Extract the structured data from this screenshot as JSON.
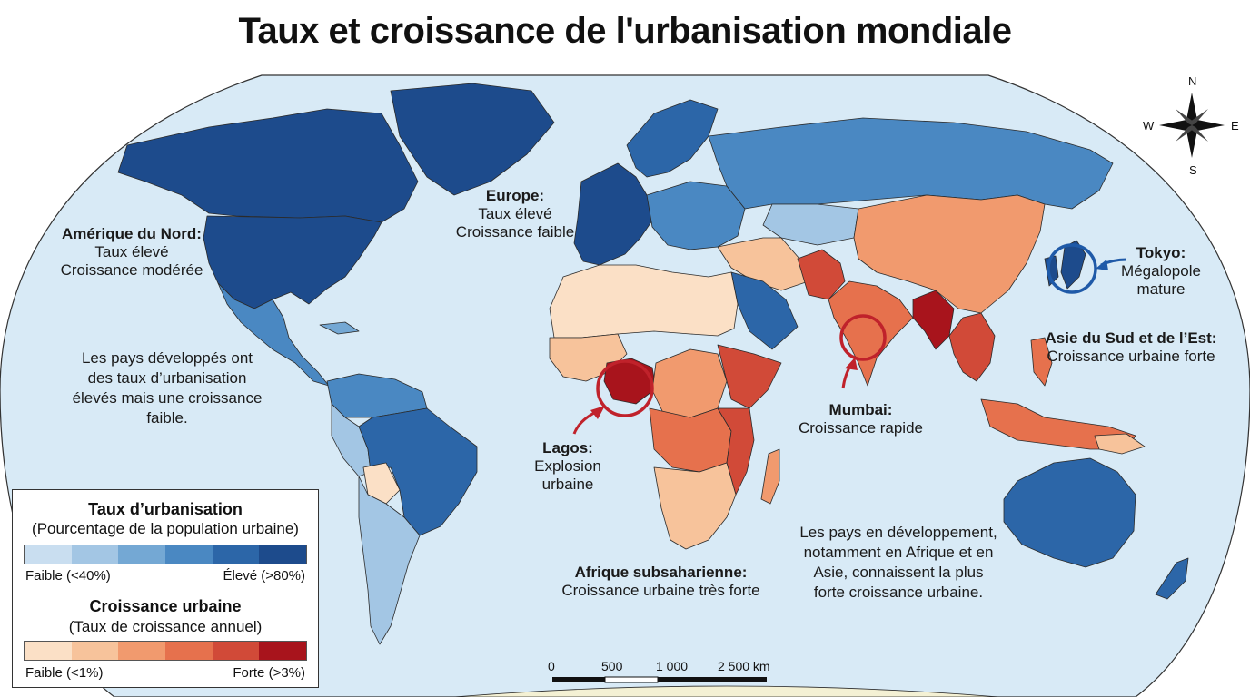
{
  "title": "Taux et croissance de l'urbanisation mondiale",
  "regions": {
    "north_america": {
      "name": "Amérique du Nord:",
      "line1": "Taux élevé",
      "line2": "Croissance modérée",
      "urbanization": "very-high",
      "growth": "moderate"
    },
    "europe": {
      "name": "Europe:",
      "line1": "Taux élevé",
      "line2": "Croissance faible",
      "urbanization": "very-high",
      "growth": "low"
    },
    "tokyo": {
      "name": "Tokyo:",
      "line1": "Mégalopole",
      "line2": "mature"
    },
    "south_east_asia": {
      "name": "Asie du Sud et de l’Est:",
      "line1": "Croissance urbaine forte"
    },
    "mumbai": {
      "name": "Mumbai:",
      "line1": "Croissance rapide"
    },
    "lagos": {
      "name": "Lagos:",
      "line1": "Explosion",
      "line2": "urbaine"
    },
    "subsaharan_africa": {
      "name": "Afrique subsaharienne:",
      "line1": "Croissance urbaine très forte"
    }
  },
  "notes": {
    "developed": "Les pays développés ont des taux d’urbanisation élevés mais une croissance faible.",
    "developing": "Les pays en développement, notamment en Afrique et en Asie, connaissent la plus forte croissance urbaine."
  },
  "legend": {
    "urbanization": {
      "title": "Taux d’urbanisation",
      "subtitle": "(Pourcentage de la population urbaine)",
      "low_label": "Faible (<40%)",
      "high_label": "Élevé (>80%)",
      "colors": [
        "#c9def0",
        "#a3c6e4",
        "#74a8d4",
        "#4a88c2",
        "#2c66a8",
        "#1d4b8c"
      ]
    },
    "growth": {
      "title": "Croissance urbaine",
      "subtitle": "(Taux de croissance annuel)",
      "low_label": "Faible (<1%)",
      "high_label": "Forte (>3%)",
      "colors": [
        "#fbe0c6",
        "#f7c39b",
        "#f19a6e",
        "#e6714d",
        "#d14a38",
        "#a8141c"
      ]
    }
  },
  "compass": {
    "n": "N",
    "s": "S",
    "e": "E",
    "w": "W"
  },
  "scale": {
    "ticks": [
      "0",
      "500",
      "1 000",
      "2 500 km"
    ]
  },
  "colors": {
    "ocean": "#d8eaf6",
    "highlight_red": "#c0222b",
    "highlight_blue": "#1f5aa8"
  }
}
